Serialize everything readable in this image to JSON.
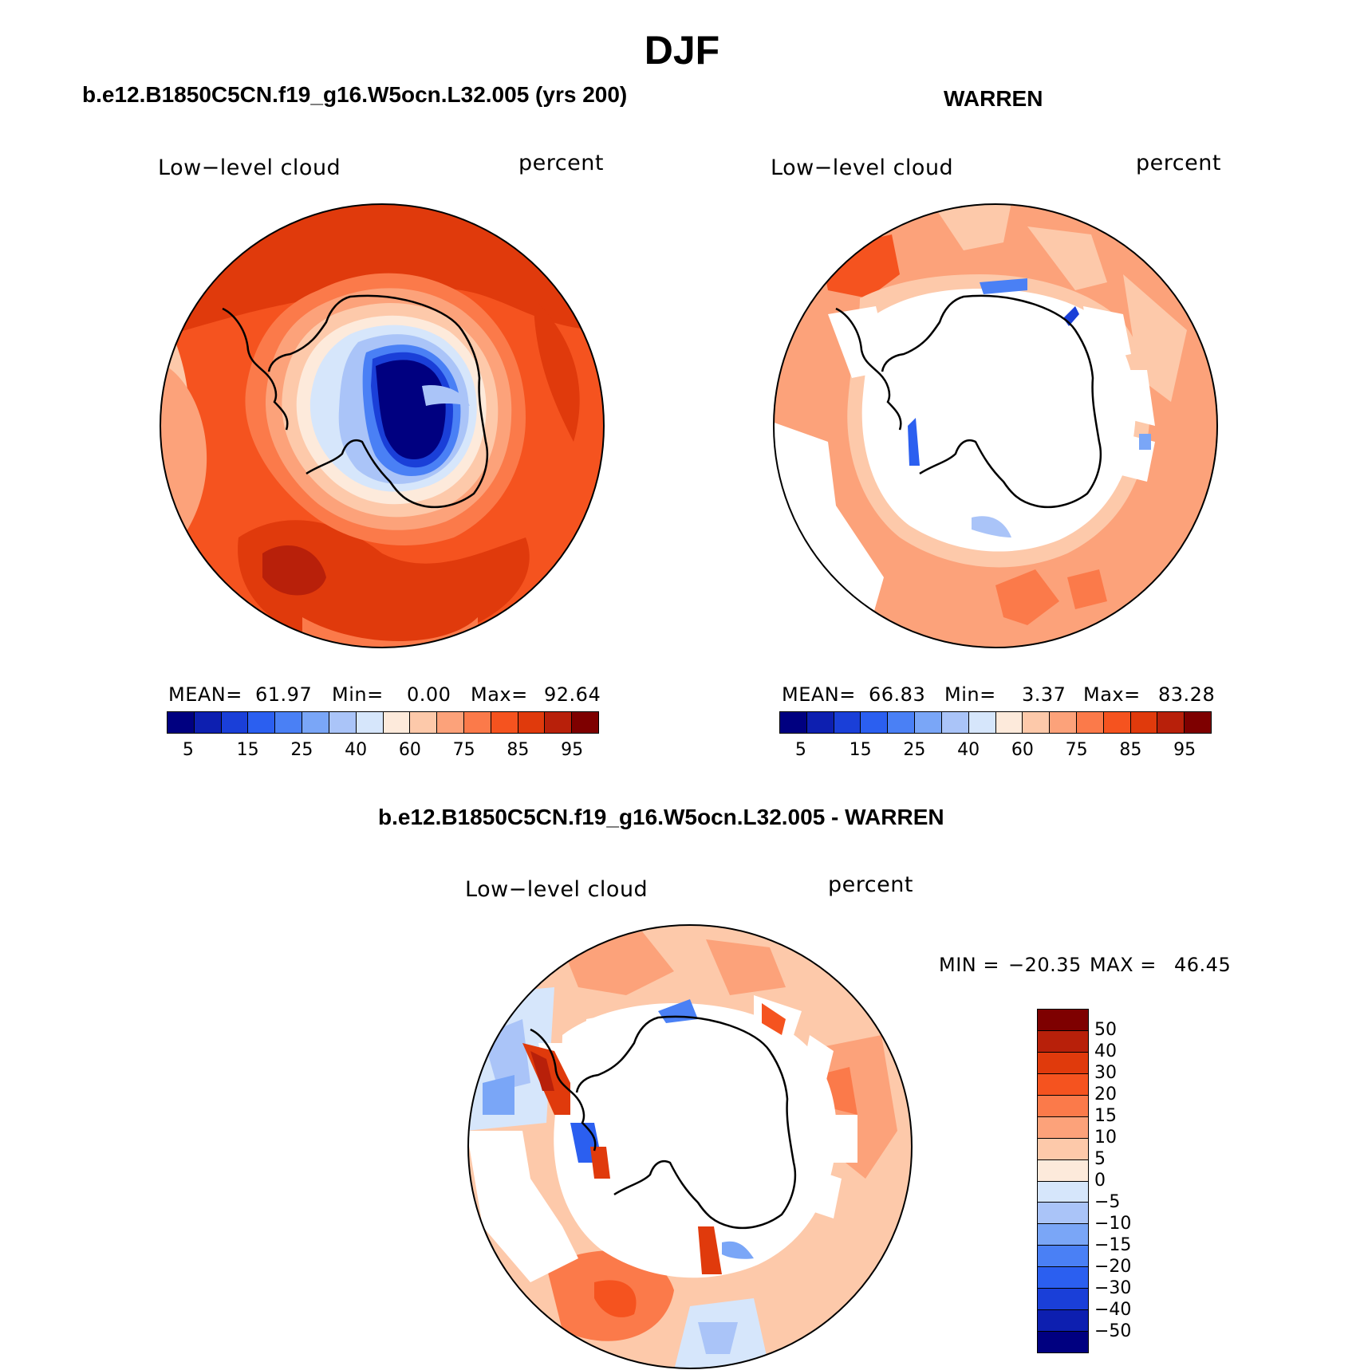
{
  "title": "DJF",
  "panels": {
    "model": {
      "title": "b.e12.B1850C5CN.f19_g16.W5ocn.L32.005 (yrs 200)",
      "variable": "Low−level cloud",
      "units": "percent",
      "stats": {
        "mean_label": "MEAN=",
        "mean": "61.97",
        "min_label": "Min=",
        "min": "0.00",
        "max_label": "Max=",
        "max": "92.64"
      },
      "colorbar_ticks": [
        "5",
        "15",
        "25",
        "40",
        "60",
        "75",
        "85",
        "95"
      ]
    },
    "obs": {
      "title": "WARREN",
      "variable": "Low−level cloud",
      "units": "percent",
      "stats": {
        "mean_label": "MEAN=",
        "mean": "66.83",
        "min_label": "Min=",
        "min": "3.37",
        "max_label": "Max=",
        "max": "83.28"
      },
      "colorbar_ticks": [
        "5",
        "15",
        "25",
        "40",
        "60",
        "75",
        "85",
        "95"
      ]
    },
    "diff": {
      "title": "b.e12.B1850C5CN.f19_g16.W5ocn.L32.005 - WARREN",
      "variable": "Low−level cloud",
      "units": "percent",
      "stats": {
        "min_label": "MIN =",
        "min": "−20.35",
        "max_label": "MAX =",
        "max": "46.45"
      },
      "colorbar_ticks": [
        "50",
        "40",
        "30",
        "20",
        "15",
        "10",
        "5",
        "0",
        "−5",
        "−10",
        "−15",
        "−20",
        "−30",
        "−40",
        "−50"
      ]
    }
  },
  "colors": {
    "abs_scale": [
      "#000080",
      "#0d1fb0",
      "#1a3fd8",
      "#2b5ff0",
      "#4a80f5",
      "#7aa6f7",
      "#aac4f8",
      "#d6e6fb",
      "#fdeadb",
      "#fdc9aa",
      "#fca27a",
      "#fb7a4a",
      "#f5531f",
      "#e03a0c",
      "#b8200a",
      "#7e0000"
    ],
    "diff_scale": [
      "#7e0000",
      "#b8200a",
      "#e03a0c",
      "#f5531f",
      "#fb7a4a",
      "#fca27a",
      "#fdc9aa",
      "#fdeadb",
      "#d6e6fb",
      "#aac4f8",
      "#7aa6f7",
      "#4a80f5",
      "#2b5ff0",
      "#1a3fd8",
      "#0d1fb0",
      "#000080"
    ]
  }
}
